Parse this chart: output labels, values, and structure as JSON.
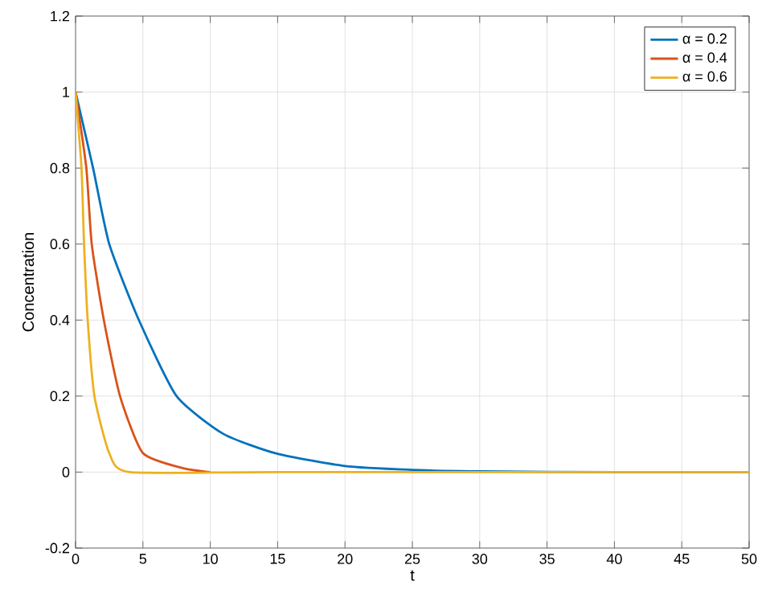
{
  "chart_data": {
    "type": "line",
    "xlabel": "t",
    "ylabel": "Concentration",
    "xlim": [
      0,
      50
    ],
    "ylim": [
      -0.2,
      1.2
    ],
    "xticks": [
      0,
      5,
      10,
      15,
      20,
      25,
      30,
      35,
      40,
      45,
      50
    ],
    "yticks": [
      -0.2,
      0,
      0.2,
      0.4,
      0.6,
      0.8,
      1,
      1.2
    ],
    "grid": true,
    "legend": "top right",
    "marker": "none",
    "line_style": "solid",
    "series": [
      {
        "name": "α = 0.2",
        "color": "#0072bd",
        "x": [
          0,
          1.3,
          2.5,
          4.7,
          7.5,
          11,
          15,
          20,
          25,
          30,
          40,
          50
        ],
        "values": [
          1,
          0.8,
          0.6,
          0.4,
          0.2,
          0.1,
          0.048,
          0.016,
          0.006,
          0.002,
          0,
          0
        ]
      },
      {
        "name": "α = 0.4",
        "color": "#d95319",
        "x": [
          0,
          0.8,
          1.2,
          2.1,
          3.3,
          5,
          8,
          10
        ],
        "values": [
          1,
          0.8,
          0.6,
          0.4,
          0.2,
          0.05,
          0.01,
          0
        ]
      },
      {
        "name": "α = 0.6",
        "color": "#edb120",
        "x": [
          0,
          0.44,
          0.63,
          0.9,
          1.4,
          2.5,
          4,
          15,
          50
        ],
        "values": [
          1,
          0.8,
          0.6,
          0.4,
          0.2,
          0.05,
          0,
          0,
          0
        ]
      }
    ]
  }
}
